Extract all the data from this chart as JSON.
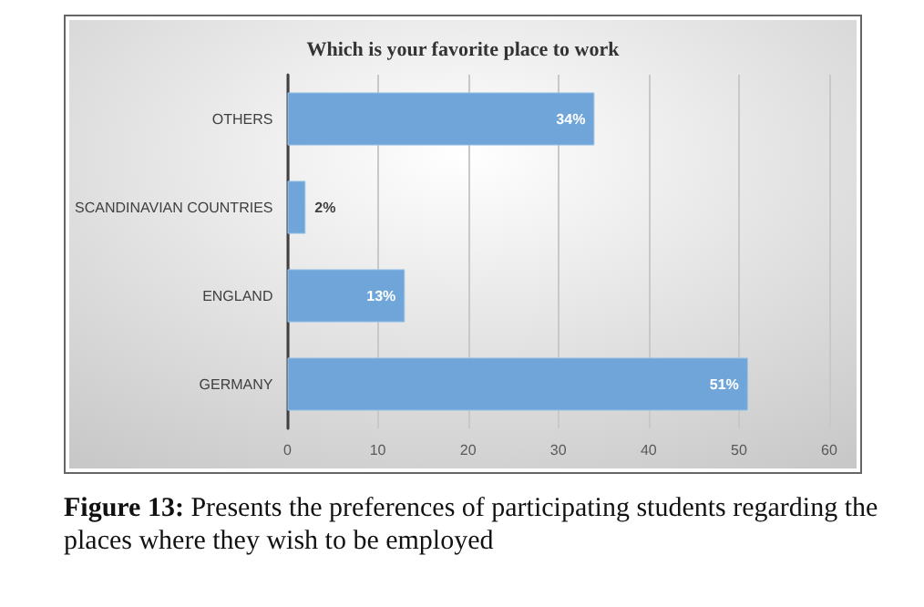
{
  "chart_data": {
    "type": "bar",
    "orientation": "horizontal",
    "title": "Which is your favorite place to work",
    "categories": [
      "OTHERS",
      "SCANDINAVIAN COUNTRIES",
      "ENGLAND",
      "GERMANY"
    ],
    "values": [
      34,
      2,
      13,
      51
    ],
    "value_labels": [
      "34%",
      "2%",
      "13%",
      "51%"
    ],
    "color": "#6fa5d8",
    "xlim": [
      0,
      60
    ],
    "xticks": [
      0,
      10,
      20,
      30,
      40,
      50,
      60
    ],
    "grid": "x",
    "annotations": [
      "Figure 13: Presents the preferences of participating students regarding the places where they wish to be employed"
    ]
  }
}
